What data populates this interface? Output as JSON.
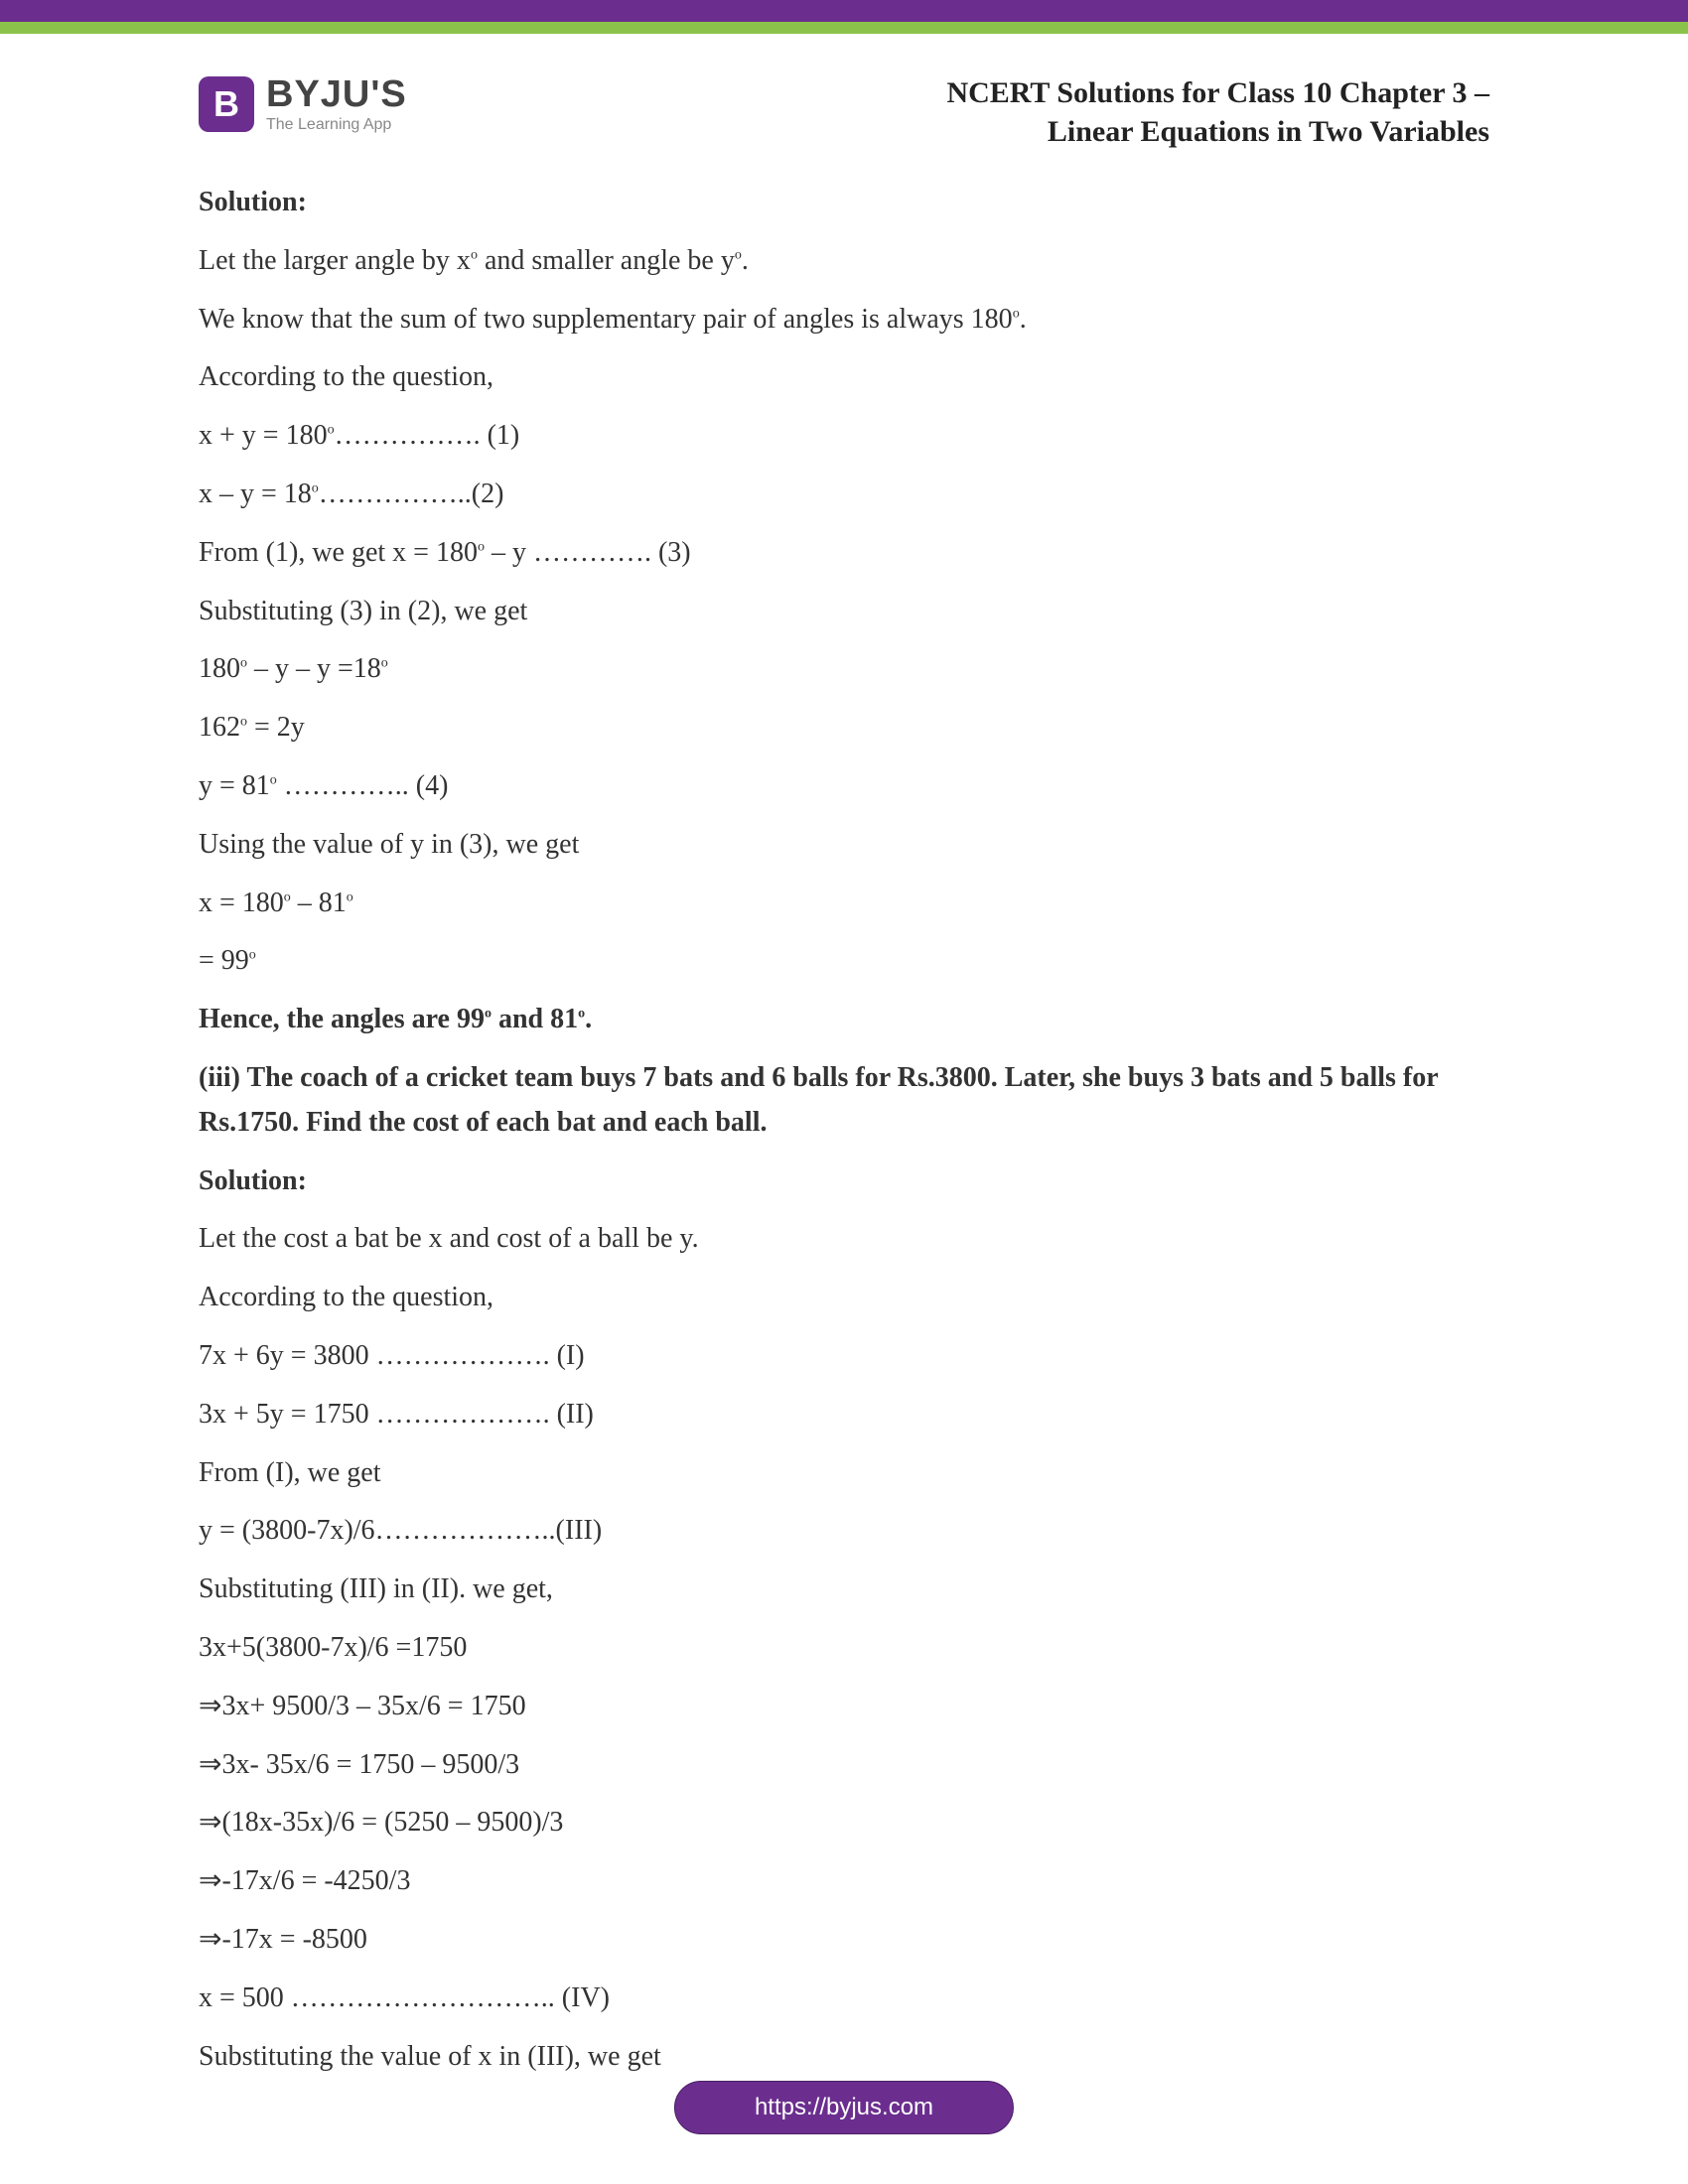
{
  "colors": {
    "purple": "#6b2e8f",
    "green": "#8bc34a",
    "text": "#333333",
    "logo_text": "#444444",
    "tagline": "#888888"
  },
  "header": {
    "logo_letter": "B",
    "logo_name": "BYJU'S",
    "logo_tagline": "The Learning App",
    "title_line1": "NCERT Solutions for Class 10 Chapter 3 –",
    "title_line2": "Linear Equations in Two Variables"
  },
  "body": {
    "sol1_label": "Solution:",
    "l1": "Let the larger angle by x",
    "l1b": " and smaller angle be y",
    "l1c": ".",
    "l2": "We know that the sum of two supplementary pair of angles is always 180",
    "l2b": ".",
    "l3": "According to the question,",
    "l4": "x + y = 180",
    "l4b": "……………. (1)",
    "l5": "x – y = 18",
    "l5b": "……………..(2)",
    "l6": "From (1), we get x = 180",
    "l6b": " – y …………. (3)",
    "l7": "Substituting (3) in (2), we get",
    "l8a": "180",
    "l8b": " – y – y =18",
    "l9a": "162",
    "l9b": " = 2y",
    "l10a": "y = 81",
    "l10b": " ………….. (4)",
    "l11": "Using the value of y in (3), we get",
    "l12a": "x = 180",
    "l12b": " – 81",
    "l13a": "= 99",
    "ans1a": "Hence, the angles are 99",
    "ans1b": " and 81",
    "ans1c": ".",
    "q2": "(iii) The coach of a cricket team buys 7 bats and 6 balls for Rs.3800. Later, she buys 3 bats and 5 balls for Rs.1750. Find the cost of each bat and each ball.",
    "sol2_label": "Solution:",
    "m1": "Let the cost a bat be x and cost of a ball be y.",
    "m2": "According to the question,",
    "m3": "7x + 6y = 3800 ………………. (I)",
    "m4": "3x + 5y = 1750 ………………. (II)",
    "m5": "From (I), we get",
    "m6": "y = (3800-7x)/6………………..(III)",
    "m7": "Substituting (III) in (II). we get,",
    "m8": "3x+5(3800-7x)/6 =1750",
    "m9": "⇒3x+ 9500/3 – 35x/6 = 1750",
    "m10": "⇒3x- 35x/6 = 1750 – 9500/3",
    "m11": "⇒(18x-35x)/6 = (5250 – 9500)/3",
    "m12": "⇒-17x/6 = -4250/3",
    "m13": "⇒-17x = -8500",
    "m14": "x = 500 ……………………….. (IV)",
    "m15": "Substituting the value of x in (III), we get"
  },
  "footer": {
    "url": "https://byjus.com"
  },
  "deg": "o"
}
